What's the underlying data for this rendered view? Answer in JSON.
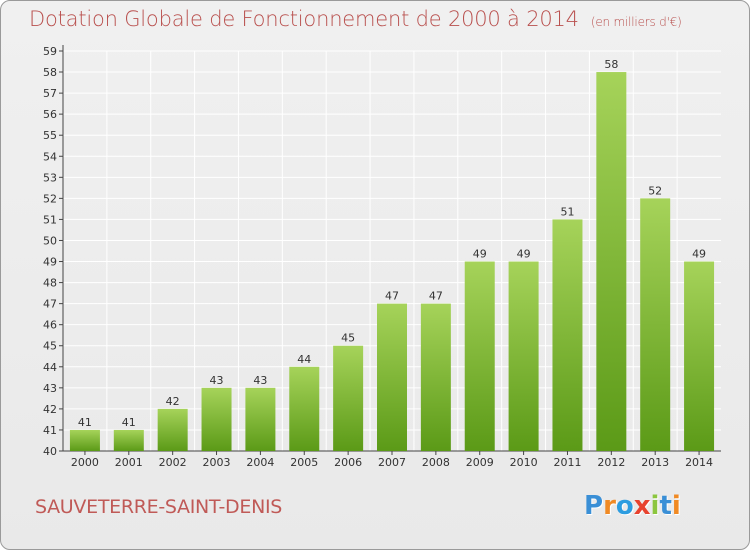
{
  "title": "Dotation Globale de Fonctionnement de 2000 à 2014",
  "unit": "(en milliers d'€)",
  "commune": "SAUVETERRE-SAINT-DENIS",
  "logo": {
    "letters": [
      "P",
      "r",
      "o",
      "x",
      "i",
      "t",
      "i"
    ],
    "colors": [
      "#3a8fd6",
      "#f08a24",
      "#2d9de0",
      "#e8432f",
      "#8cc63f",
      "#3a8fd6",
      "#f08a24"
    ]
  },
  "colors": {
    "title": "#b9504e",
    "bar_top": "#a6d35a",
    "bar_bottom": "#5b9a17",
    "grid": "#ffffff"
  },
  "chart_data": {
    "type": "bar",
    "title": "Dotation Globale de Fonctionnement de 2000 à 2014",
    "subtitle": "(en milliers d'€)",
    "categories": [
      "2000",
      "2001",
      "2002",
      "2003",
      "2004",
      "2005",
      "2006",
      "2007",
      "2008",
      "2009",
      "2010",
      "2011",
      "2012",
      "2013",
      "2014"
    ],
    "values": [
      41,
      41,
      42,
      43,
      43,
      44,
      45,
      47,
      47,
      49,
      49,
      51,
      58,
      52,
      49
    ],
    "ylim": [
      40,
      59
    ],
    "yticks": [
      40,
      41,
      42,
      43,
      44,
      45,
      46,
      47,
      48,
      49,
      50,
      51,
      52,
      53,
      54,
      55,
      56,
      57,
      58,
      59
    ],
    "grid": true,
    "data_labels": true,
    "xlabel": "",
    "ylabel": ""
  }
}
